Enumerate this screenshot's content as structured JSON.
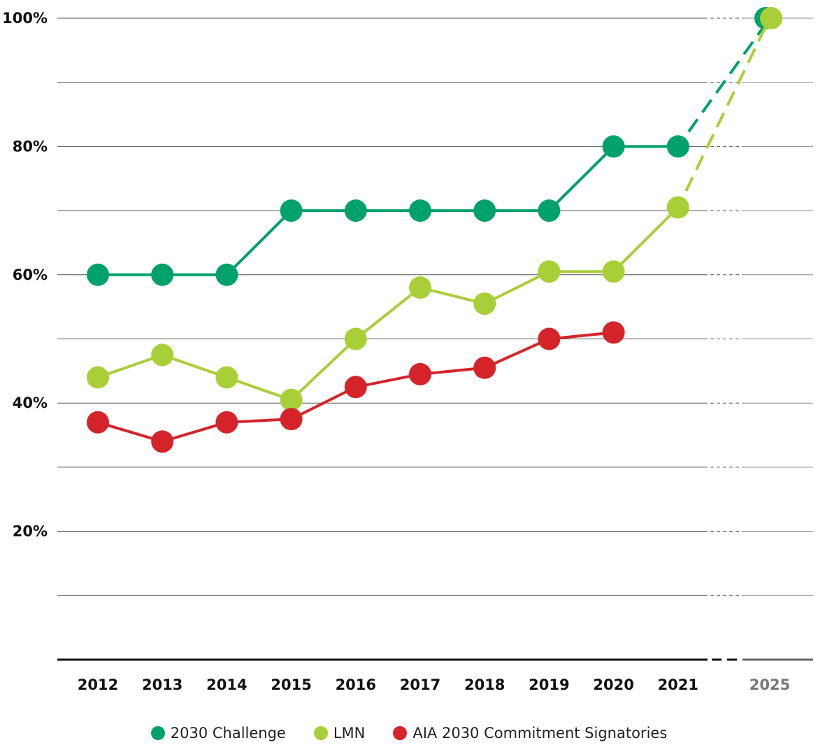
{
  "chart_data": {
    "type": "line",
    "title": "",
    "xlabel": "",
    "ylabel": "",
    "ylim": [
      0,
      100
    ],
    "yticks": [
      20,
      40,
      60,
      80,
      100
    ],
    "ytick_labels": [
      "20%",
      "40%",
      "60%",
      "80%",
      "100%"
    ],
    "grid": true,
    "x": [
      "2012",
      "2013",
      "2014",
      "2015",
      "2016",
      "2017",
      "2018",
      "2019",
      "2020",
      "2021",
      "2025"
    ],
    "legend_position": "bottom",
    "series": [
      {
        "name": "2030 Challenge",
        "color": "#00a16b",
        "values": [
          60,
          60,
          60,
          70,
          70,
          70,
          70,
          70,
          80,
          80,
          100
        ],
        "projected_from": "2021"
      },
      {
        "name": "LMN",
        "color": "#a8cf38",
        "values": [
          44,
          47.5,
          44,
          40.5,
          50,
          58,
          55.5,
          60.5,
          60.5,
          70.5,
          100
        ],
        "projected_from": "2021"
      },
      {
        "name": "AIA 2030 Commitment Signatories",
        "color": "#d4242a",
        "values": [
          37,
          34,
          37,
          37.5,
          42.5,
          44.5,
          45.5,
          50,
          51,
          null,
          null
        ]
      }
    ]
  }
}
